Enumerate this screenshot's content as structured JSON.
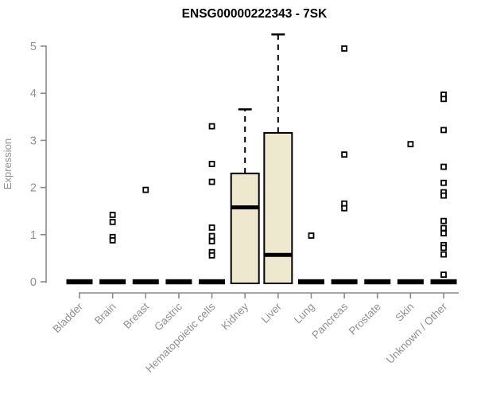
{
  "chart_data": {
    "type": "boxplot",
    "title": "ENSG00000222343 - 7SK",
    "ylabel": "Expression",
    "xlabel": "",
    "ylim": [
      0,
      5
    ],
    "yticks": [
      0,
      1,
      2,
      3,
      4,
      5
    ],
    "grid": false,
    "legend": "none",
    "categories": [
      "Bladder",
      "Brain",
      "Breast",
      "Gastric",
      "Hematopoietic cells",
      "Kidney",
      "Liver",
      "Lung",
      "Pancreas",
      "Prostate",
      "Skin",
      "Unknown / Other"
    ],
    "boxes": [
      {
        "category": "Bladder",
        "q1": 0,
        "median": 0,
        "q3": 0,
        "whisker_low": 0,
        "whisker_high": 0,
        "outliers": []
      },
      {
        "category": "Brain",
        "q1": 0,
        "median": 0,
        "q3": 0,
        "whisker_low": 0,
        "whisker_high": 0,
        "outliers": [
          1.42,
          1.27,
          0.95,
          0.88
        ]
      },
      {
        "category": "Breast",
        "q1": 0,
        "median": 0,
        "q3": 0,
        "whisker_low": 0,
        "whisker_high": 0,
        "outliers": [
          1.95
        ]
      },
      {
        "category": "Gastric",
        "q1": 0,
        "median": 0,
        "q3": 0,
        "whisker_low": 0,
        "whisker_high": 0,
        "outliers": []
      },
      {
        "category": "Hematopoietic cells",
        "q1": 0,
        "median": 0,
        "q3": 0,
        "whisker_low": 0,
        "whisker_high": 0,
        "outliers": [
          3.3,
          2.5,
          2.12,
          1.15,
          0.97,
          0.86,
          0.63,
          0.56
        ]
      },
      {
        "category": "Kidney",
        "q1": 0,
        "median": 1.58,
        "q3": 2.3,
        "whisker_low": 0,
        "whisker_high": 3.66,
        "outliers": []
      },
      {
        "category": "Liver",
        "q1": 0,
        "median": 0.57,
        "q3": 3.16,
        "whisker_low": 0,
        "whisker_high": 5.25,
        "outliers": []
      },
      {
        "category": "Lung",
        "q1": 0,
        "median": 0,
        "q3": 0,
        "whisker_low": 0,
        "whisker_high": 0,
        "outliers": [
          0.98
        ]
      },
      {
        "category": "Pancreas",
        "q1": 0,
        "median": 0,
        "q3": 0,
        "whisker_low": 0,
        "whisker_high": 0,
        "outliers": [
          4.95,
          2.7,
          1.66,
          1.56
        ]
      },
      {
        "category": "Prostate",
        "q1": 0,
        "median": 0,
        "q3": 0,
        "whisker_low": 0,
        "whisker_high": 0,
        "outliers": []
      },
      {
        "category": "Skin",
        "q1": 0,
        "median": 0,
        "q3": 0,
        "whisker_low": 0,
        "whisker_high": 0,
        "outliers": [
          2.92
        ]
      },
      {
        "category": "Unknown / Other",
        "q1": 0,
        "median": 0,
        "q3": 0,
        "whisker_low": 0,
        "whisker_high": 0,
        "outliers": [
          3.97,
          3.88,
          3.22,
          2.44,
          2.1,
          1.9,
          1.83,
          1.29,
          1.14,
          1.03,
          0.78,
          0.72,
          0.58,
          0.15
        ]
      }
    ],
    "colors": {
      "box_fill": "#EDE8CE",
      "box_stroke": "#000000",
      "median": "#000000",
      "whisker": "#000000",
      "outlier_stroke": "#000000",
      "outlier_fill": "#ffffff",
      "axis_line": "#8a8a8a",
      "tick_label": "#909090",
      "title": "#000000"
    }
  }
}
